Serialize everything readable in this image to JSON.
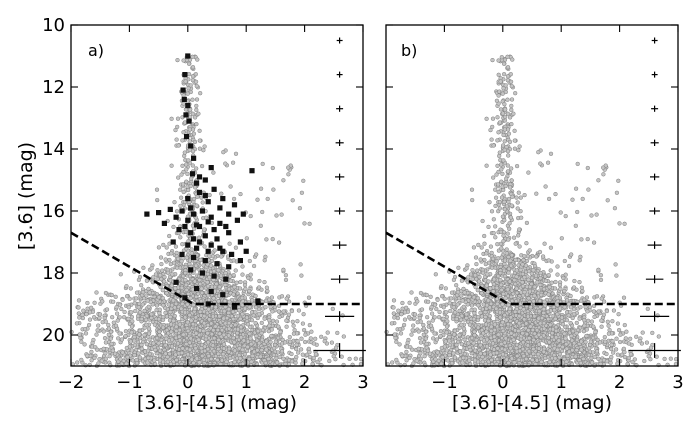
{
  "chart_data": [
    {
      "type": "scatter",
      "panel_label": "a)",
      "xlabel": "[3.6]-[4.5] (mag)",
      "ylabel": "[3.6] (mag)",
      "xlim": [
        -2,
        3
      ],
      "ylim": [
        21,
        10
      ],
      "y_inverted": true,
      "x_ticks": [
        -2,
        -1,
        0,
        1,
        2,
        3
      ],
      "x_tick_labels": [
        "−2",
        "−1",
        "0",
        "1",
        "2",
        "3"
      ],
      "y_ticks": [
        10,
        12,
        14,
        16,
        18,
        20
      ],
      "y_tick_labels": [
        "10",
        "12",
        "14",
        "16",
        "18",
        "20"
      ],
      "grid": false,
      "legend": "none",
      "series": [
        {
          "marker": "grey-open-circle",
          "color": "#9a9a9a",
          "description_only": "dense field-star population; branch near color 0.1 from mag 11 to 18, fanning to color -1.8..2.2 at mag 18-21"
        },
        {
          "marker": "black-square",
          "color": "#111111",
          "points": [
            [
              0.0,
              11.0
            ],
            [
              -0.05,
              11.6
            ],
            [
              -0.08,
              12.1
            ],
            [
              -0.06,
              12.4
            ],
            [
              0.0,
              12.6
            ],
            [
              -0.03,
              12.9
            ],
            [
              0.02,
              13.1
            ],
            [
              -0.02,
              13.6
            ],
            [
              0.05,
              13.9
            ],
            [
              0.1,
              14.3
            ],
            [
              1.1,
              14.7
            ],
            [
              0.08,
              14.8
            ],
            [
              0.3,
              15.0
            ],
            [
              0.15,
              15.1
            ],
            [
              0.45,
              15.3
            ],
            [
              0.2,
              15.4
            ],
            [
              0.6,
              15.6
            ],
            [
              0.35,
              15.7
            ],
            [
              0.8,
              15.8
            ],
            [
              0.05,
              15.9
            ],
            [
              -0.7,
              16.1
            ],
            [
              -0.5,
              16.05
            ],
            [
              -0.3,
              15.95
            ],
            [
              -0.2,
              16.2
            ],
            [
              -0.1,
              16.0
            ],
            [
              0.0,
              16.3
            ],
            [
              0.1,
              16.1
            ],
            [
              0.25,
              16.0
            ],
            [
              0.4,
              16.2
            ],
            [
              0.55,
              16.4
            ],
            [
              0.7,
              16.1
            ],
            [
              0.2,
              16.5
            ],
            [
              -0.4,
              16.4
            ],
            [
              -0.15,
              16.6
            ],
            [
              0.05,
              16.7
            ],
            [
              0.3,
              16.8
            ],
            [
              0.5,
              16.9
            ],
            [
              0.7,
              16.7
            ],
            [
              0.9,
              17.0
            ],
            [
              -0.25,
              17.0
            ],
            [
              0.0,
              17.1
            ],
            [
              0.15,
              17.2
            ],
            [
              0.35,
              17.3
            ],
            [
              0.55,
              17.2
            ],
            [
              0.75,
              17.4
            ],
            [
              -0.1,
              17.4
            ],
            [
              0.1,
              17.5
            ],
            [
              0.3,
              17.6
            ],
            [
              0.5,
              17.7
            ],
            [
              0.7,
              17.8
            ],
            [
              0.9,
              17.6
            ],
            [
              0.05,
              17.9
            ],
            [
              0.25,
              18.0
            ],
            [
              0.45,
              18.1
            ],
            [
              0.65,
              18.2
            ],
            [
              -0.2,
              18.3
            ],
            [
              0.15,
              18.5
            ],
            [
              0.4,
              18.6
            ],
            [
              0.6,
              18.7
            ],
            [
              -0.05,
              18.8
            ],
            [
              0.35,
              19.0
            ],
            [
              0.8,
              19.1
            ],
            [
              1.2,
              18.9
            ],
            [
              0.2,
              17.0
            ],
            [
              0.4,
              17.1
            ],
            [
              0.6,
              17.3
            ],
            [
              0.1,
              16.9
            ],
            [
              0.45,
              16.6
            ],
            [
              0.65,
              16.5
            ],
            [
              0.85,
              16.3
            ],
            [
              -0.05,
              16.5
            ],
            [
              0.35,
              16.35
            ],
            [
              0.15,
              16.45
            ],
            [
              1.0,
              17.3
            ],
            [
              0.95,
              16.1
            ],
            [
              0.55,
              15.9
            ],
            [
              0.3,
              15.5
            ],
            [
              0.0,
              15.6
            ],
            [
              0.2,
              14.9
            ],
            [
              0.4,
              14.6
            ]
          ]
        },
        {
          "type": "line",
          "style": "dashed",
          "color": "#000000",
          "points": [
            [
              -2.0,
              16.7
            ],
            [
              0.1,
              19.0
            ],
            [
              3.0,
              19.0
            ]
          ]
        },
        {
          "type": "errorbars",
          "x": 2.6,
          "points": [
            [
              2.6,
              10.5,
              0.05
            ],
            [
              2.6,
              11.6,
              0.05
            ],
            [
              2.6,
              12.7,
              0.06
            ],
            [
              2.6,
              13.8,
              0.07
            ],
            [
              2.6,
              14.9,
              0.08
            ],
            [
              2.6,
              16.0,
              0.09
            ],
            [
              2.6,
              17.1,
              0.12
            ],
            [
              2.6,
              18.2,
              0.15
            ],
            [
              2.6,
              19.4,
              0.25
            ],
            [
              2.6,
              20.5,
              0.45
            ]
          ]
        }
      ]
    },
    {
      "type": "scatter",
      "panel_label": "b)",
      "xlabel": "[3.6]-[4.5] (mag)",
      "ylabel": "",
      "xlim": [
        -2,
        3
      ],
      "ylim": [
        21,
        10
      ],
      "y_inverted": true,
      "x_ticks": [
        -1,
        0,
        1,
        2,
        3
      ],
      "x_tick_labels": [
        "−1",
        "0",
        "1",
        "2",
        "3"
      ],
      "y_ticks": [
        10,
        12,
        14,
        16,
        18,
        20
      ],
      "y_tick_labels": [],
      "grid": false,
      "legend": "none",
      "series": [
        {
          "marker": "grey-open-circle",
          "color": "#9a9a9a",
          "description_only": "dense field-star population without the black members; same envelope as panel a"
        },
        {
          "type": "line",
          "style": "dashed",
          "color": "#000000",
          "points": [
            [
              -2.0,
              16.7
            ],
            [
              0.1,
              19.0
            ],
            [
              3.0,
              19.0
            ]
          ]
        },
        {
          "type": "errorbars",
          "x": 2.6,
          "points": [
            [
              2.6,
              10.5,
              0.05
            ],
            [
              2.6,
              11.6,
              0.05
            ],
            [
              2.6,
              12.7,
              0.06
            ],
            [
              2.6,
              13.8,
              0.07
            ],
            [
              2.6,
              14.9,
              0.08
            ],
            [
              2.6,
              16.0,
              0.09
            ],
            [
              2.6,
              17.1,
              0.12
            ],
            [
              2.6,
              18.2,
              0.15
            ],
            [
              2.6,
              19.4,
              0.25
            ],
            [
              2.6,
              20.5,
              0.45
            ]
          ]
        }
      ]
    }
  ]
}
